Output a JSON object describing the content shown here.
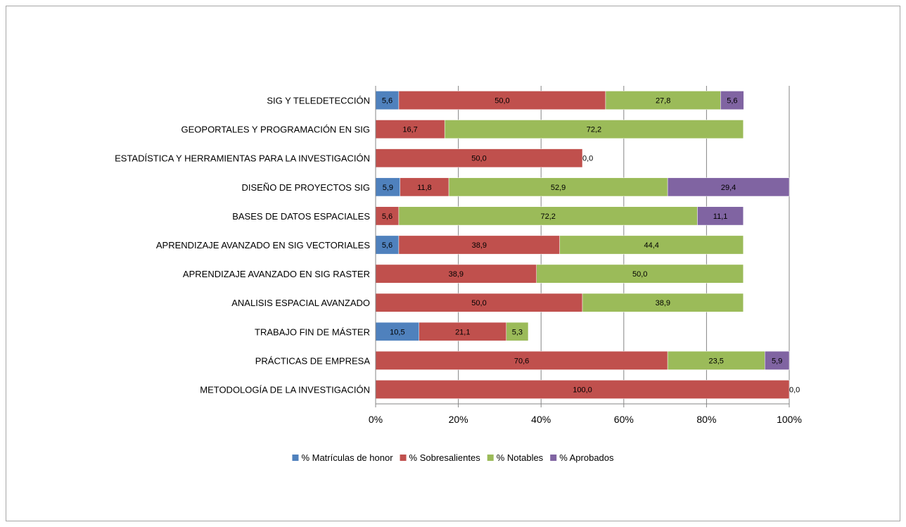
{
  "chart_data": {
    "type": "bar",
    "orientation": "horizontal",
    "stacked": "percent",
    "categories": [
      "SIG Y TELEDETECCIÓN ",
      "GEOPORTALES Y PROGRAMACIÓN EN SIG ",
      "ESTADÍSTICA Y HERRAMIENTAS PARA LA INVESTIGACIÓN ",
      "DISEÑO DE PROYECTOS SIG ",
      "BASES DE DATOS ESPACIALES ",
      "APRENDIZAJE AVANZADO EN SIG VECTORIALES ",
      "APRENDIZAJE AVANZADO EN SIG RASTER ",
      "ANALISIS ESPACIAL AVANZADO ",
      "TRABAJO FIN DE MÁSTER ",
      "PRÁCTICAS DE EMPRESA ",
      "METODOLOGÍA DE LA INVESTIGACIÓN "
    ],
    "series": [
      {
        "name": "% Matrículas de honor ",
        "color": "#4f81bd",
        "values": [
          5.6,
          0,
          0,
          5.9,
          0,
          5.6,
          0,
          0,
          10.5,
          0,
          0
        ],
        "labels": [
          "5,6 ",
          "",
          "",
          "5,9 ",
          "",
          "5,6 ",
          "",
          "",
          "10,5 ",
          "",
          ""
        ]
      },
      {
        "name": "% Sobresalientes ",
        "color": "#c0504d",
        "values": [
          50.0,
          16.7,
          50.0,
          11.8,
          5.6,
          38.9,
          38.9,
          50.0,
          21.1,
          70.6,
          100.0
        ],
        "labels": [
          "50,0 ",
          "16,7 ",
          "50,0 ",
          "11,8 ",
          "5,6 ",
          "38,9 ",
          "38,9 ",
          "50,0 ",
          "21,1 ",
          "70,6 ",
          "100,0 "
        ]
      },
      {
        "name": "% Notables ",
        "color": "#9bbb59",
        "values": [
          27.8,
          72.2,
          0.0,
          52.9,
          72.2,
          44.4,
          50.0,
          38.9,
          5.3,
          23.5,
          0.0
        ],
        "labels": [
          "27,8 ",
          "72,2 ",
          "0,0 ",
          "52,9 ",
          "72,2 ",
          "44,4 ",
          "50,0 ",
          "38,9 ",
          "5,3 ",
          "23,5 ",
          "0,0 "
        ]
      },
      {
        "name": "% Aprobados ",
        "color": "#8064a2",
        "values": [
          5.6,
          0,
          0,
          29.4,
          11.1,
          0,
          0,
          0,
          0,
          5.9,
          0
        ],
        "labels": [
          "5,6 ",
          "",
          "",
          "29,4 ",
          "11,1 ",
          "",
          "",
          "",
          "",
          "5,9 ",
          ""
        ]
      }
    ],
    "x_ticks": [
      "0% ",
      "20% ",
      "40% ",
      "60% ",
      "80% ",
      "100% "
    ],
    "xlim": [
      0,
      100
    ],
    "grid": "vertical",
    "legend": "bottom",
    "title": "",
    "xlabel": "",
    "ylabel": ""
  }
}
